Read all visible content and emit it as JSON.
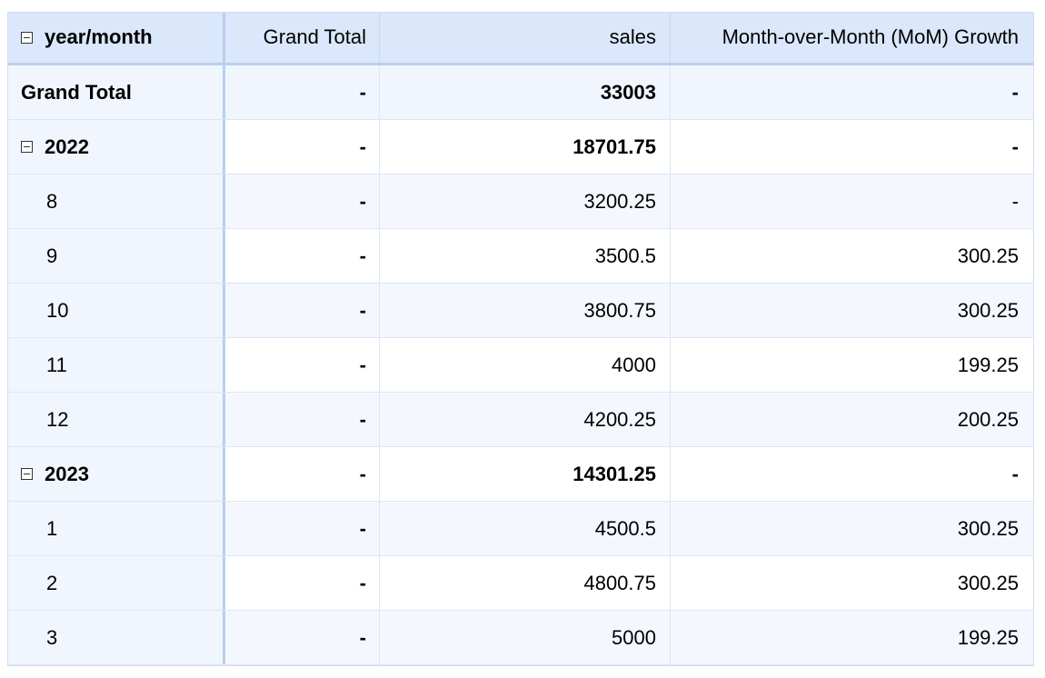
{
  "header": {
    "row_label": "year/month",
    "columns": [
      "Grand Total",
      "sales",
      "Month-over-Month (MoM) Growth"
    ]
  },
  "grand_total": {
    "label": "Grand Total",
    "grand_total": "-",
    "sales": "33003",
    "mom": "-"
  },
  "years": [
    {
      "label": "2022",
      "grand_total": "-",
      "sales": "18701.75",
      "mom": "-",
      "months": [
        {
          "label": "8",
          "grand_total": "-",
          "sales": "3200.25",
          "mom": "-"
        },
        {
          "label": "9",
          "grand_total": "-",
          "sales": "3500.5",
          "mom": "300.25"
        },
        {
          "label": "10",
          "grand_total": "-",
          "sales": "3800.75",
          "mom": "300.25"
        },
        {
          "label": "11",
          "grand_total": "-",
          "sales": "4000",
          "mom": "199.25"
        },
        {
          "label": "12",
          "grand_total": "-",
          "sales": "4200.25",
          "mom": "200.25"
        }
      ]
    },
    {
      "label": "2023",
      "grand_total": "-",
      "sales": "14301.25",
      "mom": "-",
      "months": [
        {
          "label": "1",
          "grand_total": "-",
          "sales": "4500.5",
          "mom": "300.25"
        },
        {
          "label": "2",
          "grand_total": "-",
          "sales": "4800.75",
          "mom": "300.25"
        },
        {
          "label": "3",
          "grand_total": "-",
          "sales": "5000",
          "mom": "199.25"
        }
      ]
    }
  ]
}
